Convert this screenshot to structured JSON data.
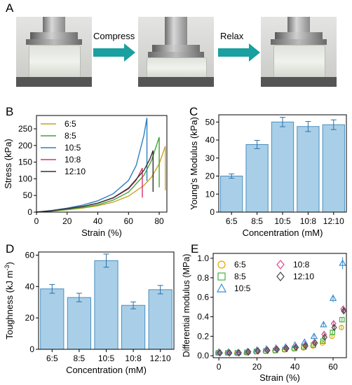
{
  "panel_letters": {
    "a": "A",
    "b": "B",
    "c": "C",
    "d": "D",
    "e": "E"
  },
  "panel_a": {
    "step1": "Compress",
    "step2": "Relax"
  },
  "chart_data": [
    {
      "type": "line",
      "panel": "B",
      "xlabel": "Strain (%)",
      "ylabel": "Stress (kPa)",
      "xlim": [
        0,
        85
      ],
      "ylim": [
        0,
        290
      ],
      "xticks": [
        0,
        20,
        40,
        60,
        80
      ],
      "yticks": [
        0,
        50,
        100,
        150,
        200,
        250
      ],
      "legend_position": "top-left",
      "series": [
        {
          "name": "6:5",
          "color": "#c9a227",
          "break_strain": 84,
          "peak_stress": 198,
          "x": [
            0,
            10,
            20,
            30,
            40,
            50,
            60,
            70,
            75,
            80,
            84
          ],
          "y": [
            0,
            3,
            7,
            12,
            19,
            30,
            48,
            80,
            105,
            145,
            198
          ]
        },
        {
          "name": "8:5",
          "color": "#3fa535",
          "break_strain": 80,
          "peak_stress": 225,
          "x": [
            0,
            10,
            20,
            30,
            40,
            50,
            60,
            70,
            75,
            80
          ],
          "y": [
            0,
            3,
            8,
            14,
            22,
            36,
            60,
            110,
            155,
            225
          ]
        },
        {
          "name": "10:5",
          "color": "#2e7fbf",
          "break_strain": 72,
          "peak_stress": 283,
          "x": [
            0,
            10,
            20,
            30,
            40,
            50,
            60,
            65,
            70,
            72
          ],
          "y": [
            0,
            5,
            12,
            21,
            34,
            55,
            95,
            140,
            230,
            283
          ]
        },
        {
          "name": "10:8",
          "color": "#d6336c",
          "break_strain": 69,
          "peak_stress": 132,
          "x": [
            0,
            10,
            20,
            30,
            40,
            50,
            60,
            65,
            69
          ],
          "y": [
            0,
            4,
            10,
            17,
            27,
            42,
            70,
            96,
            132
          ]
        },
        {
          "name": "12:10",
          "color": "#333333",
          "break_strain": 76,
          "peak_stress": 185,
          "x": [
            0,
            10,
            20,
            30,
            40,
            50,
            60,
            70,
            74,
            76
          ],
          "y": [
            0,
            4,
            10,
            17,
            27,
            43,
            72,
            125,
            160,
            185
          ]
        }
      ]
    },
    {
      "type": "bar",
      "panel": "C",
      "xlabel": "Concentration (mM)",
      "ylabel": "Young's Modulus (kPa)",
      "ylim": [
        0,
        54
      ],
      "yticks": [
        0,
        10,
        20,
        30,
        40,
        50
      ],
      "categories": [
        "6:5",
        "8:5",
        "10:5",
        "10:8",
        "12:10"
      ],
      "values": [
        20,
        37.5,
        50,
        47.5,
        48.5
      ],
      "errors": [
        1.2,
        2.3,
        2.6,
        2.8,
        2.7
      ]
    },
    {
      "type": "bar",
      "panel": "D",
      "xlabel": "Concentration (mM)",
      "ylabel": "Toughness (kJ m",
      "ylabel_sup": "-3",
      "ylabel_end": ")",
      "ylim": [
        0,
        62
      ],
      "yticks": [
        0,
        20,
        40,
        60
      ],
      "categories": [
        "6:5",
        "8:5",
        "10:5",
        "10:8",
        "12:10"
      ],
      "values": [
        38.5,
        33,
        56.5,
        28,
        38
      ],
      "errors": [
        2.8,
        2.7,
        4.2,
        2.2,
        2.7
      ]
    },
    {
      "type": "scatter",
      "panel": "E",
      "xlabel": "Strain (%)",
      "ylabel": "Differential modulus (MPa)",
      "xlim": [
        -3,
        67
      ],
      "ylim": [
        -0.02,
        1.05
      ],
      "xticks": [
        0,
        20,
        40,
        60
      ],
      "yticks": [
        0.0,
        0.2,
        0.4,
        0.6,
        0.8,
        1.0
      ],
      "legend_position": "top-left",
      "x": [
        0,
        5,
        10,
        15,
        20,
        25,
        30,
        35,
        40,
        45,
        50,
        55,
        60,
        65
      ],
      "series": [
        {
          "name": "6:5",
          "marker": "circle",
          "color": "#e0a800",
          "values": [
            0.03,
            0.03,
            0.025,
            0.03,
            0.04,
            0.045,
            0.05,
            0.06,
            0.07,
            0.08,
            0.1,
            0.13,
            0.2,
            0.29
          ]
        },
        {
          "name": "8:5",
          "marker": "square",
          "color": "#3fb33a",
          "values": [
            0.03,
            0.03,
            0.03,
            0.035,
            0.045,
            0.05,
            0.055,
            0.065,
            0.075,
            0.09,
            0.11,
            0.15,
            0.24,
            0.37
          ]
        },
        {
          "name": "10:5",
          "marker": "triangle",
          "color": "#3b8fd1",
          "values": [
            0.04,
            0.04,
            0.035,
            0.045,
            0.06,
            0.07,
            0.08,
            0.09,
            0.11,
            0.14,
            0.2,
            0.32,
            0.59,
            0.95
          ]
        },
        {
          "name": "10:8",
          "marker": "diamond",
          "color": "#d44b8c",
          "values": [
            0.03,
            0.03,
            0.03,
            0.035,
            0.05,
            0.06,
            0.07,
            0.08,
            0.09,
            0.11,
            0.14,
            0.22,
            0.33,
            0.48
          ]
        },
        {
          "name": "12:10",
          "marker": "diamond-open",
          "color": "#444444",
          "values": [
            0.03,
            0.03,
            0.03,
            0.04,
            0.05,
            0.055,
            0.065,
            0.075,
            0.085,
            0.1,
            0.13,
            0.19,
            0.29,
            0.46
          ]
        }
      ]
    }
  ]
}
